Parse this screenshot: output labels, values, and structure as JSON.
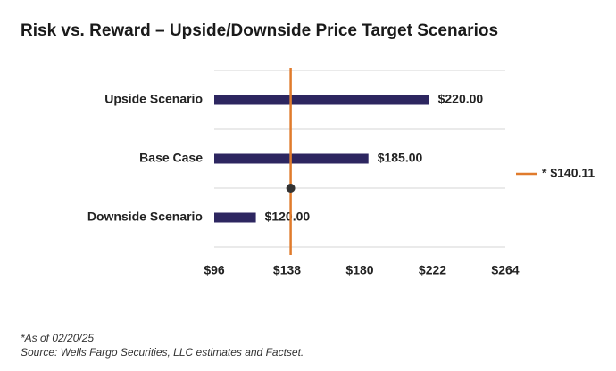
{
  "chart_data": {
    "type": "bar",
    "orientation": "horizontal",
    "title": "Risk vs. Reward – Upside/Downside Price Target Scenarios",
    "categories": [
      "Upside Scenario",
      "Base Case",
      "Downside Scenario"
    ],
    "values": [
      220,
      185,
      120
    ],
    "value_labels": [
      "$220.00",
      "$185.00",
      "$120.00"
    ],
    "color": "#2d2660",
    "xlim": [
      96,
      264
    ],
    "xticks": [
      {
        "value": 96,
        "label": "$96"
      },
      {
        "value": 138,
        "label": "$138"
      },
      {
        "value": 180,
        "label": "$180"
      },
      {
        "value": 222,
        "label": "$222"
      },
      {
        "value": 264,
        "label": "$264"
      }
    ],
    "grid": true,
    "reference_line": {
      "value": 140.11,
      "label": "* $140.11",
      "color": "#e07b2c"
    },
    "footnotes": [
      "*As of 02/20/25",
      "Source: Wells Fargo Securities, LLC estimates and Factset."
    ]
  }
}
